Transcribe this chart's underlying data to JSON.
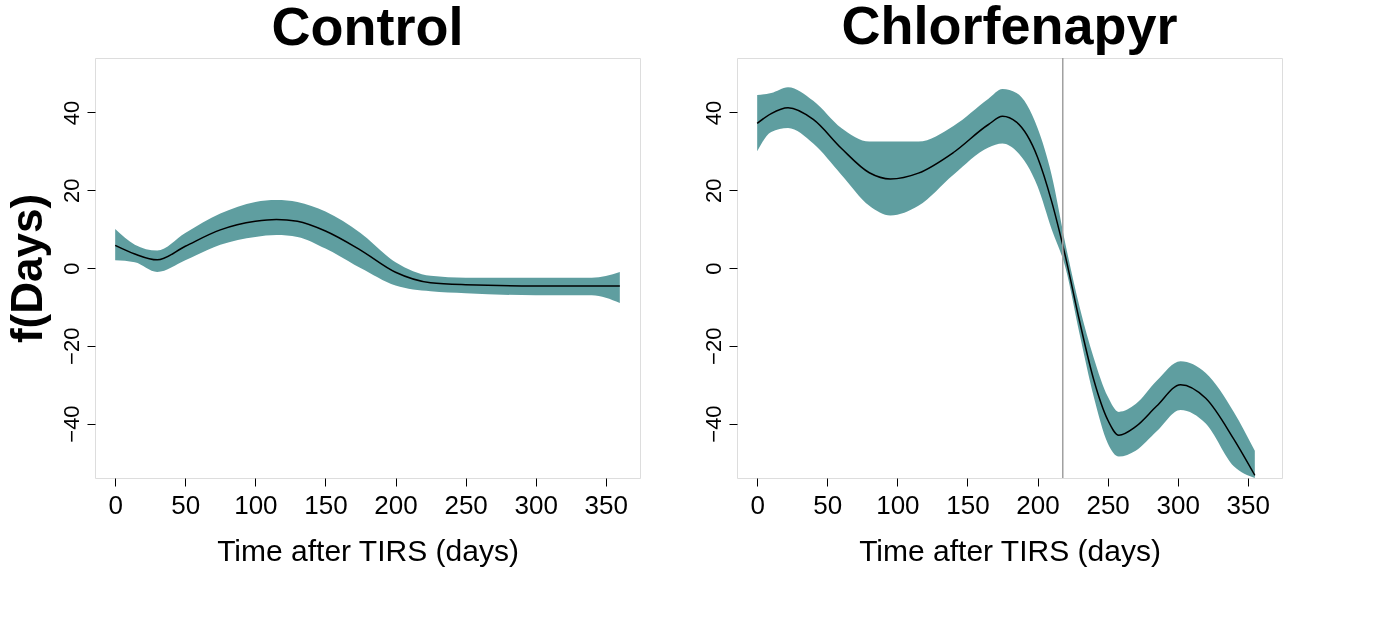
{
  "chart_data": [
    {
      "type": "line",
      "title": "Control",
      "xlabel": "Time after TIRS (days)",
      "ylabel": "f(Days)",
      "grid": false,
      "xlim": [
        -14.4,
        374.4
      ],
      "ylim": [
        -54,
        54
      ],
      "xticks": [
        0,
        50,
        100,
        150,
        200,
        250,
        300,
        350
      ],
      "yticks": [
        -40,
        -20,
        0,
        20,
        40
      ],
      "x": [
        0,
        14,
        30,
        50,
        75,
        100,
        115,
        130,
        150,
        175,
        200,
        225,
        250,
        300,
        340,
        360
      ],
      "series": [
        {
          "color": "#000000",
          "values": [
            5.8,
            3.6,
            2.1,
            5.6,
            9.8,
            12,
            12.5,
            12,
            9.5,
            4.6,
            -1.1,
            -3.8,
            -4.3,
            -4.6,
            -4.6,
            -4.6
          ],
          "upper": [
            10,
            6,
            4.5,
            9,
            14,
            17,
            17.5,
            17,
            14.5,
            9,
            1.5,
            -2,
            -2.5,
            -2.5,
            -2.5,
            -1
          ],
          "lower": [
            2,
            1.5,
            -1,
            2,
            6,
            8,
            8.5,
            8,
            5,
            0,
            -4.5,
            -6,
            -6.5,
            -7,
            -7,
            -9
          ]
        }
      ]
    },
    {
      "type": "line",
      "title": "Chlorfenapyr",
      "xlabel": "Time after TIRS (days)",
      "grid": false,
      "xlim": [
        -14.4,
        374.4
      ],
      "ylim": [
        -54,
        54
      ],
      "xticks": [
        0,
        50,
        100,
        150,
        200,
        250,
        300,
        350
      ],
      "yticks": [
        -40,
        -20,
        0,
        20,
        40
      ],
      "x": [
        0,
        10,
        22,
        40,
        60,
        80,
        95,
        115,
        140,
        165,
        175,
        185,
        200,
        210,
        220,
        230,
        240,
        250,
        258,
        270,
        285,
        302,
        320,
        340,
        355
      ],
      "series": [
        {
          "color": "#000000",
          "values": [
            37.2,
            39.7,
            41.2,
            38.2,
            30.8,
            24.5,
            22.9,
            24.4,
            29.7,
            36.9,
            39,
            37.5,
            28.5,
            17.2,
            2.8,
            -13.7,
            -28.6,
            -39,
            -43,
            -40.8,
            -35.5,
            -30,
            -33.5,
            -44,
            -53.3
          ],
          "upper": [
            44.5,
            45,
            46.5,
            43,
            36,
            32.5,
            32.5,
            32.5,
            36.5,
            43.5,
            46,
            45,
            36,
            24,
            6,
            -10,
            -23,
            -33,
            -37,
            -35,
            -29,
            -24,
            -27,
            -37,
            -47
          ],
          "lower": [
            30,
            35,
            36,
            32,
            24,
            16,
            13.5,
            16,
            24,
            31,
            32,
            30,
            21,
            10,
            0,
            -17,
            -33,
            -45,
            -48.5,
            -47,
            -42,
            -36.5,
            -40,
            -51,
            -54
          ]
        }
      ],
      "ref_lines": [
        {
          "axis": "x",
          "value": 218,
          "label": null,
          "color": "#a0a0a0"
        }
      ]
    }
  ]
}
